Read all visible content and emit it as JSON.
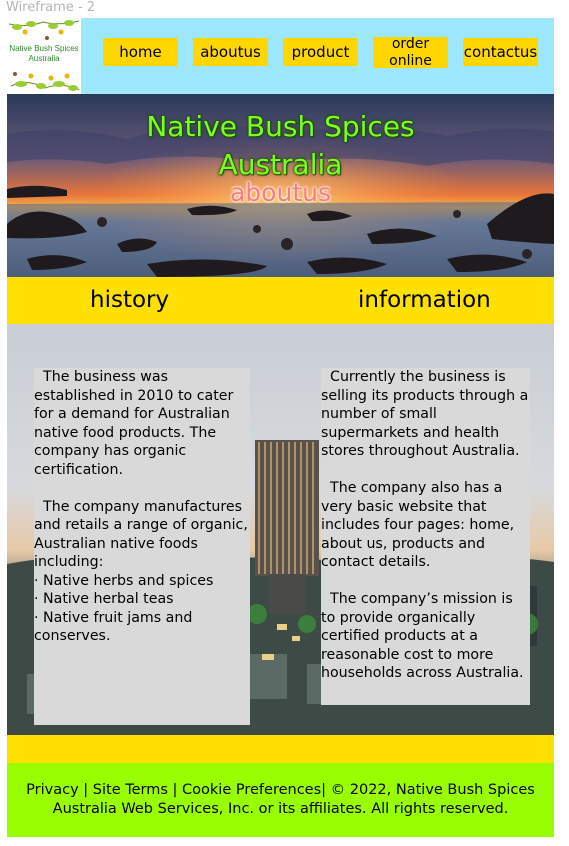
{
  "frame": {
    "label": "Wireframe - 2"
  },
  "logo": {
    "line1": "Native Bush Spices",
    "line2": "Australia"
  },
  "nav": {
    "items": [
      {
        "label": "home"
      },
      {
        "label": "aboutus"
      },
      {
        "label": "product"
      },
      {
        "label": "order\nonline"
      },
      {
        "label": "contactus"
      }
    ]
  },
  "hero": {
    "title_line1": "Native Bush Spices",
    "title_line2": "Australia",
    "subtitle": "aboutus"
  },
  "band": {
    "left_title": "history",
    "right_title": "information"
  },
  "history": {
    "text": "  The business was established in 2010 to cater for a demand for Australian native food products. The company has organic certification.\n\n  The company manufactures and retails a range of organic, Australian native foods including:\n· Native herbs and spices\n· Native herbal teas\n· Native fruit jams and conserves."
  },
  "information": {
    "text": "  Currently the business is selling its products through a number of small supermarkets and health stores throughout Australia.\n\n  The company also has a very basic website that includes four pages: home, about us, products and contact details.\n\n  The company’s mission is to provide organically certified products at a reasonable cost to more households across Australia."
  },
  "footer": {
    "privacy": "Privacy",
    "sep1": " | ",
    "terms": "Site Terms",
    "sep2": " | ",
    "cookies": "Cookie Preferences",
    "rest1": "| ©  2022, Native Bush Spices",
    "line2": "Australia Web Services, Inc. or its affiliates. All rights reserved."
  },
  "colors": {
    "header_bg": "#9ee8ff",
    "nav_button": "#ffd700",
    "band": "#ffe000",
    "footer_bg": "#99ff00",
    "panel_bg": "#d9d9d9",
    "hero_title": "#7cff1a",
    "hero_subtitle": "#ff7a7a"
  }
}
